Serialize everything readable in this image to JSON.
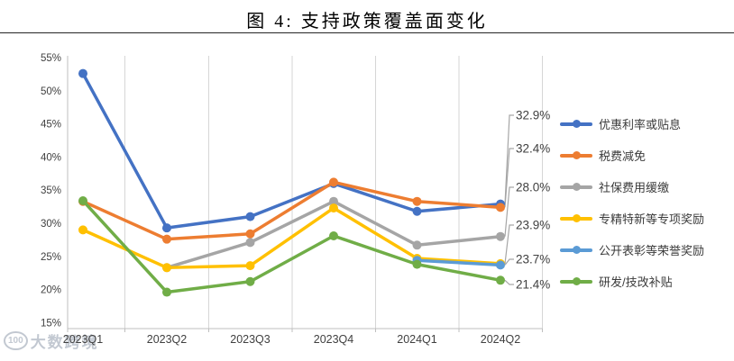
{
  "watermark": {
    "logo": "100",
    "text": "大数跨境"
  },
  "chart_data": {
    "type": "line",
    "title": "图 4: 支持政策覆盖面变化",
    "categories": [
      "2023Q1",
      "2023Q2",
      "2023Q3",
      "2023Q4",
      "2024Q1",
      "2024Q2"
    ],
    "series": [
      {
        "name": "优惠利率或贴息",
        "color": "#4472C4",
        "values": [
          52.6,
          29.3,
          31.0,
          36.0,
          31.8,
          32.9
        ],
        "end_label": "32.9%"
      },
      {
        "name": "税费减免",
        "color": "#ED7D31",
        "values": [
          33.3,
          27.6,
          28.4,
          36.2,
          33.3,
          32.4
        ],
        "end_label": "32.4%"
      },
      {
        "name": "社保费用缓缴",
        "color": "#A5A5A5",
        "values": [
          null,
          23.3,
          27.1,
          33.3,
          26.7,
          28.0
        ],
        "end_label": "28.0%"
      },
      {
        "name": "专精特新等专项奖励",
        "color": "#FFC000",
        "values": [
          29.0,
          23.3,
          23.6,
          32.3,
          24.7,
          23.9
        ],
        "end_label": "23.9%"
      },
      {
        "name": "公开表彰等荣誉奖励",
        "color": "#5B9BD5",
        "values": [
          null,
          null,
          null,
          null,
          24.4,
          23.7
        ],
        "end_label": "23.7%"
      },
      {
        "name": "研发/技改补贴",
        "color": "#70AD47",
        "values": [
          33.4,
          19.6,
          21.2,
          28.1,
          23.8,
          21.4
        ],
        "end_label": "21.4%"
      }
    ],
    "y_axis": {
      "min": 15,
      "max": 55,
      "step": 5,
      "unit": "%"
    },
    "grid": "vertical-only",
    "legend_position": "right"
  }
}
